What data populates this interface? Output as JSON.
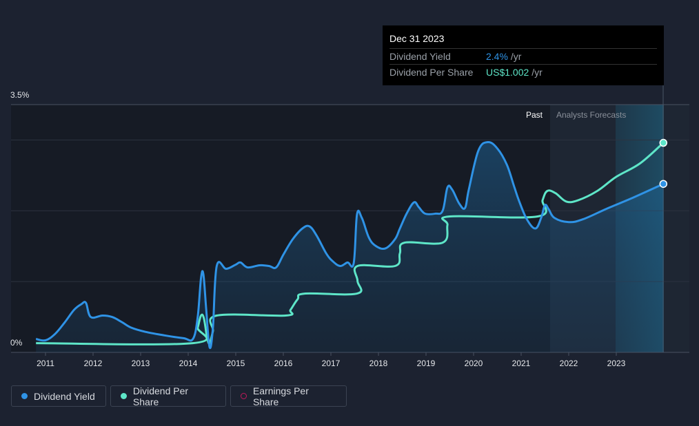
{
  "colors": {
    "yield": "#2f93e6",
    "dps": "#5ee6c8",
    "eps": "#c2185b",
    "background": "#1c2230"
  },
  "tooltip": {
    "date": "Dec 31 2023",
    "yield_label": "Dividend Yield",
    "yield_value": "2.4%",
    "yield_unit": "/yr",
    "dps_label": "Dividend Per Share",
    "dps_value": "US$1.002",
    "dps_unit": "/yr"
  },
  "regions": {
    "past_label": "Past",
    "forecast_label": "Analysts Forecasts"
  },
  "legend": [
    {
      "label": "Dividend Yield",
      "color": "#2f93e6",
      "hollow": false
    },
    {
      "label": "Dividend Per Share",
      "color": "#5ee6c8",
      "hollow": false
    },
    {
      "label": "Earnings Per Share",
      "color": "#c2185b",
      "hollow": true
    }
  ],
  "chart_data": {
    "type": "line",
    "x_ticks": [
      "2011",
      "2012",
      "2013",
      "2014",
      "2015",
      "2016",
      "2017",
      "2018",
      "2019",
      "2020",
      "2021",
      "2022",
      "2023"
    ],
    "y_tick_labels": [
      "3.5%",
      "0%"
    ],
    "ylim": [
      0,
      3.5
    ],
    "xlim": [
      2010.65,
      2024.5
    ],
    "past_end": 2021.62,
    "forecast_band_start": 2023.0,
    "series": [
      {
        "name": "Dividend Yield",
        "unit": "%",
        "points": [
          [
            2010.8,
            0.19
          ],
          [
            2011.0,
            0.17
          ],
          [
            2011.2,
            0.26
          ],
          [
            2011.4,
            0.42
          ],
          [
            2011.6,
            0.6
          ],
          [
            2011.75,
            0.68
          ],
          [
            2011.85,
            0.7
          ],
          [
            2011.95,
            0.5
          ],
          [
            2012.2,
            0.52
          ],
          [
            2012.4,
            0.5
          ],
          [
            2012.6,
            0.43
          ],
          [
            2012.8,
            0.35
          ],
          [
            2013.1,
            0.29
          ],
          [
            2013.5,
            0.24
          ],
          [
            2013.9,
            0.2
          ],
          [
            2014.1,
            0.19
          ],
          [
            2014.2,
            0.5
          ],
          [
            2014.27,
            1.05
          ],
          [
            2014.32,
            1.1
          ],
          [
            2014.38,
            0.6
          ],
          [
            2014.45,
            0.07
          ],
          [
            2014.52,
            0.35
          ],
          [
            2014.6,
            1.22
          ],
          [
            2014.8,
            1.18
          ],
          [
            2015.0,
            1.24
          ],
          [
            2015.1,
            1.27
          ],
          [
            2015.25,
            1.2
          ],
          [
            2015.5,
            1.23
          ],
          [
            2015.7,
            1.22
          ],
          [
            2015.85,
            1.2
          ],
          [
            2016.0,
            1.38
          ],
          [
            2016.2,
            1.6
          ],
          [
            2016.4,
            1.75
          ],
          [
            2016.55,
            1.78
          ],
          [
            2016.7,
            1.65
          ],
          [
            2016.9,
            1.4
          ],
          [
            2017.05,
            1.28
          ],
          [
            2017.2,
            1.22
          ],
          [
            2017.35,
            1.27
          ],
          [
            2017.48,
            1.26
          ],
          [
            2017.55,
            1.95
          ],
          [
            2017.65,
            1.9
          ],
          [
            2017.8,
            1.62
          ],
          [
            2017.95,
            1.5
          ],
          [
            2018.15,
            1.47
          ],
          [
            2018.35,
            1.6
          ],
          [
            2018.45,
            1.75
          ],
          [
            2018.6,
            1.97
          ],
          [
            2018.75,
            2.12
          ],
          [
            2018.85,
            2.05
          ],
          [
            2018.98,
            1.96
          ],
          [
            2019.2,
            1.96
          ],
          [
            2019.35,
            2.0
          ],
          [
            2019.45,
            2.33
          ],
          [
            2019.55,
            2.3
          ],
          [
            2019.7,
            2.1
          ],
          [
            2019.82,
            2.04
          ],
          [
            2019.9,
            2.3
          ],
          [
            2020.1,
            2.85
          ],
          [
            2020.3,
            2.97
          ],
          [
            2020.5,
            2.88
          ],
          [
            2020.7,
            2.65
          ],
          [
            2020.85,
            2.35
          ],
          [
            2020.95,
            2.15
          ],
          [
            2021.12,
            1.88
          ],
          [
            2021.3,
            1.75
          ],
          [
            2021.42,
            1.9
          ],
          [
            2021.5,
            2.08
          ],
          [
            2021.58,
            2.02
          ],
          [
            2021.7,
            1.9
          ],
          [
            2022.0,
            1.84
          ],
          [
            2022.3,
            1.88
          ],
          [
            2022.8,
            2.03
          ],
          [
            2023.3,
            2.17
          ],
          [
            2023.99,
            2.38
          ]
        ]
      },
      {
        "name": "Dividend Per Share",
        "points": [
          [
            2010.8,
            0.13
          ],
          [
            2014.1,
            0.13
          ],
          [
            2014.2,
            0.35
          ],
          [
            2014.27,
            0.52
          ],
          [
            2014.33,
            0.48
          ],
          [
            2014.4,
            0.2
          ],
          [
            2014.45,
            0.13
          ],
          [
            2014.52,
            0.3
          ],
          [
            2014.6,
            0.52
          ],
          [
            2016.05,
            0.52
          ],
          [
            2016.15,
            0.6
          ],
          [
            2016.3,
            0.75
          ],
          [
            2016.45,
            0.83
          ],
          [
            2017.55,
            0.83
          ],
          [
            2017.56,
            1.01
          ],
          [
            2017.56,
            1.22
          ],
          [
            2018.35,
            1.22
          ],
          [
            2018.45,
            1.4
          ],
          [
            2018.55,
            1.55
          ],
          [
            2019.35,
            1.55
          ],
          [
            2019.45,
            1.8
          ],
          [
            2019.5,
            1.92
          ],
          [
            2021.35,
            1.92
          ],
          [
            2021.45,
            2.15
          ],
          [
            2021.55,
            2.28
          ],
          [
            2021.72,
            2.25
          ],
          [
            2021.95,
            2.13
          ],
          [
            2022.2,
            2.15
          ],
          [
            2022.6,
            2.28
          ],
          [
            2023.0,
            2.48
          ],
          [
            2023.5,
            2.67
          ],
          [
            2023.99,
            2.96
          ]
        ]
      }
    ]
  }
}
